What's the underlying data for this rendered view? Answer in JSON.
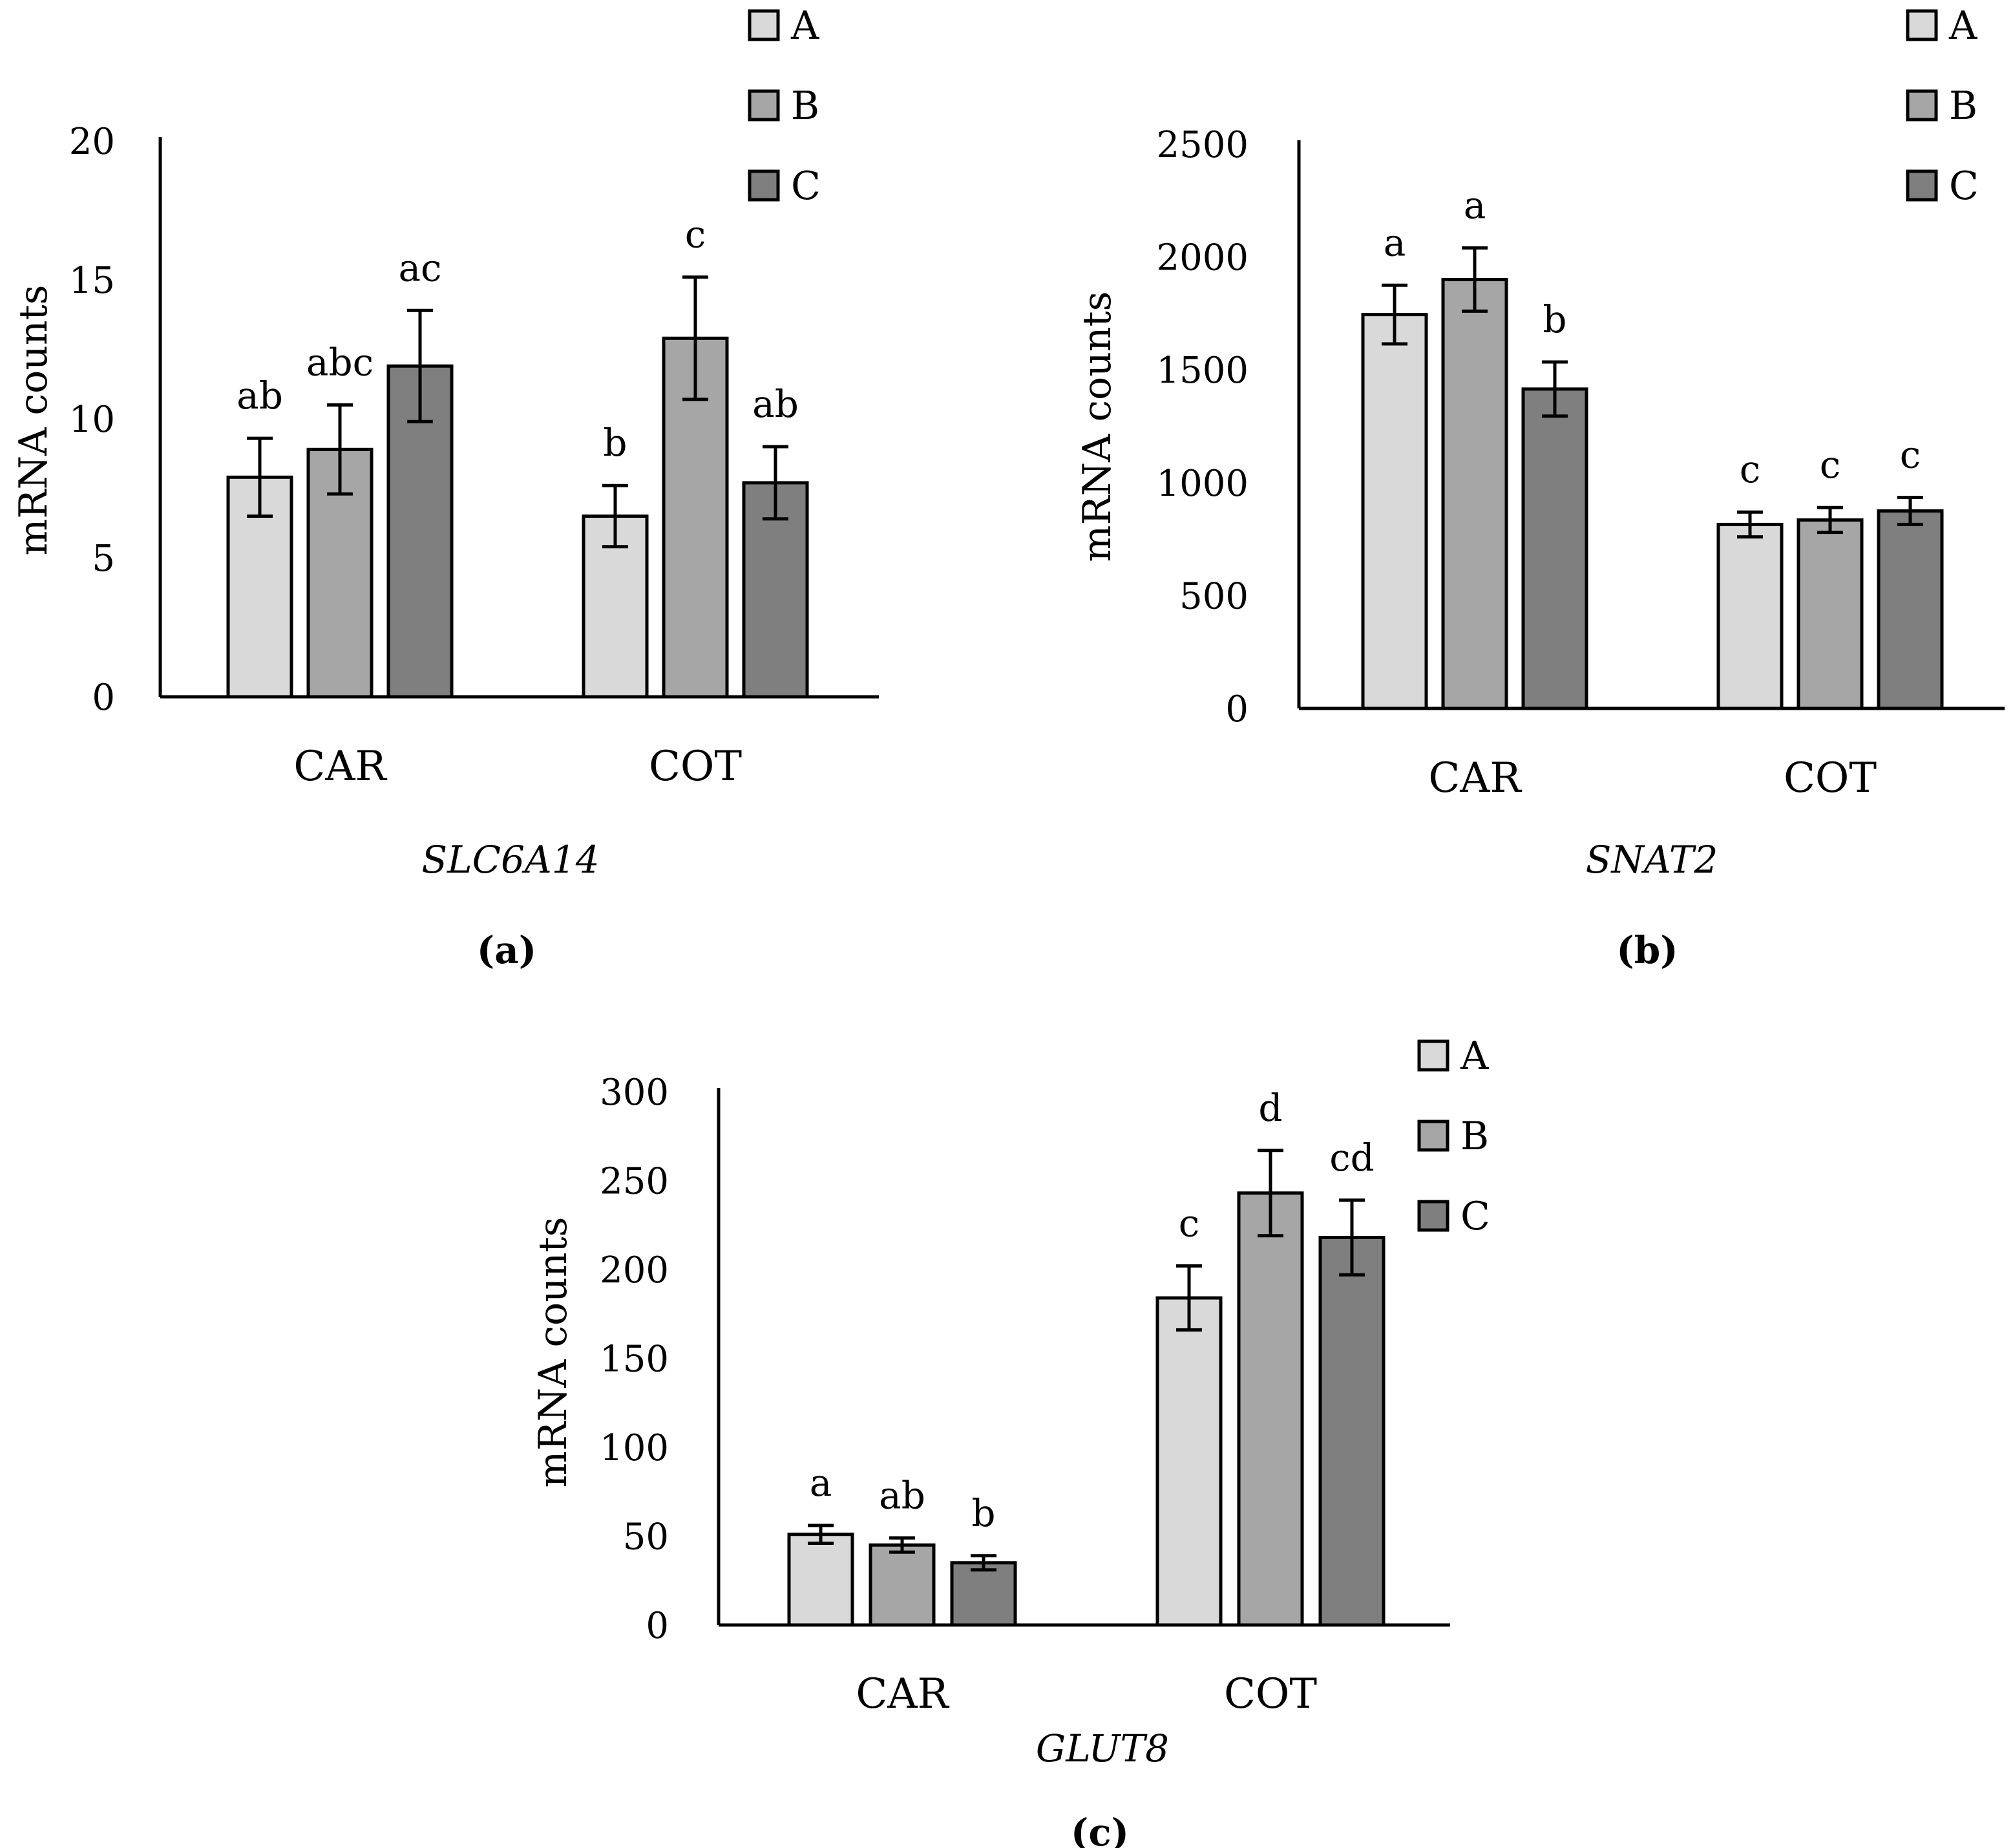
{
  "colors": {
    "A": "#d9d9d9",
    "B": "#a6a6a6",
    "C": "#7f7f7f"
  },
  "chart_data": [
    {
      "id": "a",
      "type": "bar",
      "panel_label": "(a)",
      "gene": "SLC6A14",
      "ylabel": "mRNA counts",
      "ylim": [
        0,
        20
      ],
      "yticks": [
        0,
        5,
        10,
        15,
        20
      ],
      "categories": [
        "CAR",
        "COT"
      ],
      "legend": [
        "A",
        "B",
        "C"
      ],
      "series": [
        {
          "name": "A",
          "values": [
            7.9,
            6.5
          ],
          "errors": [
            1.4,
            1.1
          ],
          "letters": [
            "ab",
            "b"
          ]
        },
        {
          "name": "B",
          "values": [
            8.9,
            12.9
          ],
          "errors": [
            1.6,
            2.2
          ],
          "letters": [
            "abc",
            "c"
          ]
        },
        {
          "name": "C",
          "values": [
            11.9,
            7.7
          ],
          "errors": [
            2.0,
            1.3
          ],
          "letters": [
            "ac",
            "ab"
          ]
        }
      ]
    },
    {
      "id": "b",
      "type": "bar",
      "panel_label": "(b)",
      "gene": "SNAT2",
      "ylabel": "mRNA counts",
      "ylim": [
        0,
        2500
      ],
      "yticks": [
        0,
        500,
        1000,
        1500,
        2000,
        2500
      ],
      "categories": [
        "CAR",
        "COT"
      ],
      "legend": [
        "A",
        "B",
        "C"
      ],
      "series": [
        {
          "name": "A",
          "values": [
            1745,
            815
          ],
          "errors": [
            130,
            55
          ],
          "letters": [
            "a",
            "c"
          ]
        },
        {
          "name": "B",
          "values": [
            1900,
            835
          ],
          "errors": [
            140,
            55
          ],
          "letters": [
            "a",
            "c"
          ]
        },
        {
          "name": "C",
          "values": [
            1415,
            875
          ],
          "errors": [
            120,
            60
          ],
          "letters": [
            "b",
            "c"
          ]
        }
      ]
    },
    {
      "id": "c",
      "type": "bar",
      "panel_label": "(c)",
      "gene": "GLUT8",
      "ylabel": "mRNA counts",
      "ylim": [
        0,
        300
      ],
      "yticks": [
        0,
        50,
        100,
        150,
        200,
        250,
        300
      ],
      "categories": [
        "CAR",
        "COT"
      ],
      "legend": [
        "A",
        "B",
        "C"
      ],
      "series": [
        {
          "name": "A",
          "values": [
            51,
            184
          ],
          "errors": [
            5,
            18
          ],
          "letters": [
            "a",
            "c"
          ]
        },
        {
          "name": "B",
          "values": [
            45,
            243
          ],
          "errors": [
            4,
            24
          ],
          "letters": [
            "ab",
            "d"
          ]
        },
        {
          "name": "C",
          "values": [
            35,
            218
          ],
          "errors": [
            4,
            21
          ],
          "letters": [
            "b",
            "cd"
          ]
        }
      ]
    }
  ]
}
